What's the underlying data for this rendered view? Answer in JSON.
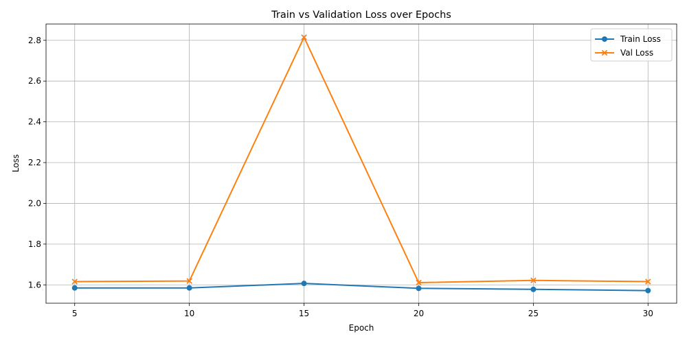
{
  "chart_data": {
    "type": "line",
    "title": "Train vs Validation Loss over Epochs",
    "xlabel": "Epoch",
    "ylabel": "Loss",
    "x": [
      5,
      10,
      15,
      20,
      25,
      30
    ],
    "xlim": [
      3.75,
      31.25
    ],
    "ylim": [
      1.51,
      2.88
    ],
    "xticks": [
      5,
      10,
      15,
      20,
      25,
      30
    ],
    "yticks": [
      1.6,
      1.8,
      2.0,
      2.2,
      2.4,
      2.6,
      2.8
    ],
    "ytick_labels": [
      "1.6",
      "1.8",
      "2.0",
      "2.2",
      "2.4",
      "2.6",
      "2.8"
    ],
    "grid": true,
    "legend_position": "top-right",
    "series": [
      {
        "name": "Train Loss",
        "color": "#1f77b4",
        "marker": "circle",
        "values": [
          1.585,
          1.585,
          1.607,
          1.583,
          1.578,
          1.572
        ]
      },
      {
        "name": "Val Loss",
        "color": "#ff7f0e",
        "marker": "x",
        "values": [
          1.616,
          1.619,
          2.815,
          1.611,
          1.622,
          1.616
        ]
      }
    ]
  }
}
